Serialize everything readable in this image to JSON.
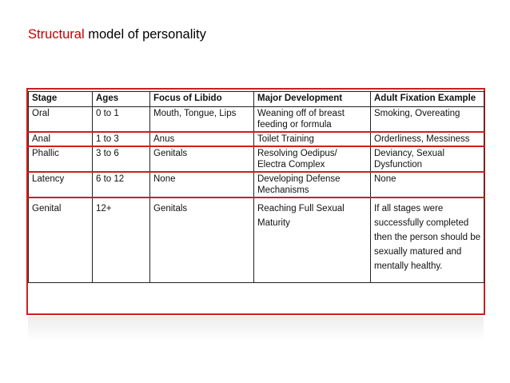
{
  "slide": {
    "title_accent": "Structural",
    "title_rest": " model of personality",
    "accent_color": "#c00000"
  },
  "table": {
    "headers": [
      "Stage",
      "Ages",
      "Focus of Libido",
      "Major Development",
      "Adult Fixation Example"
    ],
    "rows": [
      [
        "Oral",
        "0 to 1",
        "Mouth, Tongue, Lips",
        "Weaning off of breast feeding or formula",
        "Smoking, Overeating"
      ],
      [
        "Anal",
        "1 to 3",
        "Anus",
        "Toilet Training",
        "Orderliness, Messiness"
      ],
      [
        "Phallic",
        "3 to 6",
        "Genitals",
        "Resolving Oedipus/ Electra Complex",
        "Deviancy, Sexual Dysfunction"
      ],
      [
        "Latency",
        "6 to 12",
        "None",
        "Developing Defense Mechanisms",
        "None"
      ],
      [
        "Genital",
        "12+",
        "Genitals",
        "Reaching Full Sexual Maturity",
        "If all stages were successfully completed then the person should be sexually matured and mentally healthy."
      ]
    ]
  }
}
